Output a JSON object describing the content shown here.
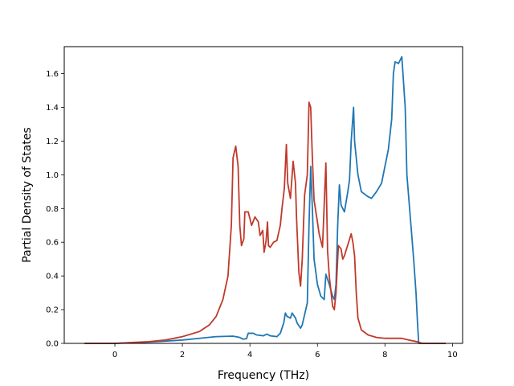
{
  "chart_data": {
    "type": "line",
    "xlabel": "Frequency (THz)",
    "ylabel": "Partial Density of States",
    "xlim": [
      -1.5,
      10.3
    ],
    "ylim": [
      0,
      1.76
    ],
    "xticks": [
      0,
      2,
      4,
      6,
      8,
      10
    ],
    "yticks": [
      0.0,
      0.2,
      0.4,
      0.6,
      0.8,
      1.0,
      1.2,
      1.4,
      1.6
    ],
    "xtick_labels": [
      "0",
      "2",
      "4",
      "6",
      "8",
      "10"
    ],
    "ytick_labels": [
      "0.0",
      "0.2",
      "0.4",
      "0.6",
      "0.8",
      "1.0",
      "1.2",
      "1.4",
      "1.6"
    ],
    "grid": false,
    "series": [
      {
        "color": "#1f77b4",
        "points": [
          [
            -0.9,
            0.0
          ],
          [
            0.0,
            0.0
          ],
          [
            0.5,
            0.003
          ],
          [
            1.0,
            0.008
          ],
          [
            1.5,
            0.013
          ],
          [
            2.0,
            0.02
          ],
          [
            2.5,
            0.03
          ],
          [
            3.0,
            0.04
          ],
          [
            3.5,
            0.043
          ],
          [
            3.7,
            0.035
          ],
          [
            3.8,
            0.025
          ],
          [
            3.9,
            0.028
          ],
          [
            3.95,
            0.06
          ],
          [
            4.1,
            0.06
          ],
          [
            4.2,
            0.05
          ],
          [
            4.4,
            0.045
          ],
          [
            4.5,
            0.055
          ],
          [
            4.6,
            0.045
          ],
          [
            4.8,
            0.04
          ],
          [
            4.9,
            0.06
          ],
          [
            5.0,
            0.12
          ],
          [
            5.05,
            0.18
          ],
          [
            5.1,
            0.16
          ],
          [
            5.2,
            0.15
          ],
          [
            5.25,
            0.18
          ],
          [
            5.35,
            0.15
          ],
          [
            5.4,
            0.12
          ],
          [
            5.5,
            0.09
          ],
          [
            5.55,
            0.11
          ],
          [
            5.7,
            0.24
          ],
          [
            5.75,
            0.7
          ],
          [
            5.8,
            1.05
          ],
          [
            5.85,
            0.8
          ],
          [
            5.9,
            0.5
          ],
          [
            6.0,
            0.35
          ],
          [
            6.1,
            0.28
          ],
          [
            6.2,
            0.26
          ],
          [
            6.25,
            0.41
          ],
          [
            6.35,
            0.35
          ],
          [
            6.45,
            0.28
          ],
          [
            6.5,
            0.26
          ],
          [
            6.55,
            0.35
          ],
          [
            6.6,
            0.7
          ],
          [
            6.65,
            0.94
          ],
          [
            6.7,
            0.82
          ],
          [
            6.8,
            0.78
          ],
          [
            6.9,
            0.9
          ],
          [
            6.95,
            0.97
          ],
          [
            7.0,
            1.2
          ],
          [
            7.07,
            1.4
          ],
          [
            7.1,
            1.2
          ],
          [
            7.2,
            1.0
          ],
          [
            7.3,
            0.9
          ],
          [
            7.5,
            0.87
          ],
          [
            7.6,
            0.86
          ],
          [
            7.75,
            0.9
          ],
          [
            7.9,
            0.95
          ],
          [
            8.0,
            1.05
          ],
          [
            8.1,
            1.15
          ],
          [
            8.2,
            1.33
          ],
          [
            8.25,
            1.6
          ],
          [
            8.3,
            1.67
          ],
          [
            8.4,
            1.66
          ],
          [
            8.5,
            1.7
          ],
          [
            8.6,
            1.4
          ],
          [
            8.65,
            1.0
          ],
          [
            8.75,
            0.75
          ],
          [
            8.85,
            0.5
          ],
          [
            8.92,
            0.3
          ],
          [
            8.97,
            0.1
          ],
          [
            9.0,
            0.0
          ],
          [
            9.8,
            0.0
          ]
        ]
      },
      {
        "color": "#c0392b",
        "points": [
          [
            -0.9,
            0.0
          ],
          [
            0.0,
            0.0
          ],
          [
            0.5,
            0.005
          ],
          [
            1.0,
            0.01
          ],
          [
            1.5,
            0.02
          ],
          [
            2.0,
            0.04
          ],
          [
            2.5,
            0.07
          ],
          [
            2.8,
            0.11
          ],
          [
            3.0,
            0.16
          ],
          [
            3.2,
            0.26
          ],
          [
            3.35,
            0.4
          ],
          [
            3.45,
            0.7
          ],
          [
            3.5,
            1.1
          ],
          [
            3.58,
            1.17
          ],
          [
            3.65,
            1.05
          ],
          [
            3.7,
            0.7
          ],
          [
            3.75,
            0.58
          ],
          [
            3.82,
            0.62
          ],
          [
            3.85,
            0.78
          ],
          [
            3.95,
            0.78
          ],
          [
            4.05,
            0.7
          ],
          [
            4.15,
            0.75
          ],
          [
            4.25,
            0.72
          ],
          [
            4.3,
            0.64
          ],
          [
            4.38,
            0.67
          ],
          [
            4.42,
            0.54
          ],
          [
            4.48,
            0.61
          ],
          [
            4.52,
            0.72
          ],
          [
            4.55,
            0.58
          ],
          [
            4.6,
            0.57
          ],
          [
            4.7,
            0.6
          ],
          [
            4.8,
            0.61
          ],
          [
            4.9,
            0.7
          ],
          [
            4.95,
            0.8
          ],
          [
            5.02,
            0.92
          ],
          [
            5.08,
            1.18
          ],
          [
            5.12,
            0.95
          ],
          [
            5.2,
            0.86
          ],
          [
            5.28,
            1.08
          ],
          [
            5.35,
            0.95
          ],
          [
            5.38,
            0.75
          ],
          [
            5.45,
            0.42
          ],
          [
            5.5,
            0.34
          ],
          [
            5.55,
            0.5
          ],
          [
            5.62,
            0.88
          ],
          [
            5.7,
            1.0
          ],
          [
            5.75,
            1.43
          ],
          [
            5.8,
            1.4
          ],
          [
            5.85,
            1.1
          ],
          [
            5.9,
            0.85
          ],
          [
            6.0,
            0.72
          ],
          [
            6.05,
            0.65
          ],
          [
            6.15,
            0.57
          ],
          [
            6.25,
            1.07
          ],
          [
            6.3,
            0.55
          ],
          [
            6.35,
            0.4
          ],
          [
            6.45,
            0.22
          ],
          [
            6.5,
            0.2
          ],
          [
            6.55,
            0.3
          ],
          [
            6.62,
            0.58
          ],
          [
            6.7,
            0.56
          ],
          [
            6.75,
            0.5
          ],
          [
            6.8,
            0.52
          ],
          [
            7.0,
            0.65
          ],
          [
            7.05,
            0.6
          ],
          [
            7.1,
            0.52
          ],
          [
            7.15,
            0.3
          ],
          [
            7.2,
            0.15
          ],
          [
            7.3,
            0.08
          ],
          [
            7.5,
            0.05
          ],
          [
            7.75,
            0.035
          ],
          [
            8.0,
            0.03
          ],
          [
            8.3,
            0.03
          ],
          [
            8.5,
            0.03
          ],
          [
            8.7,
            0.02
          ],
          [
            8.95,
            0.01
          ],
          [
            9.1,
            0.0
          ],
          [
            9.8,
            0.0
          ]
        ]
      }
    ]
  }
}
